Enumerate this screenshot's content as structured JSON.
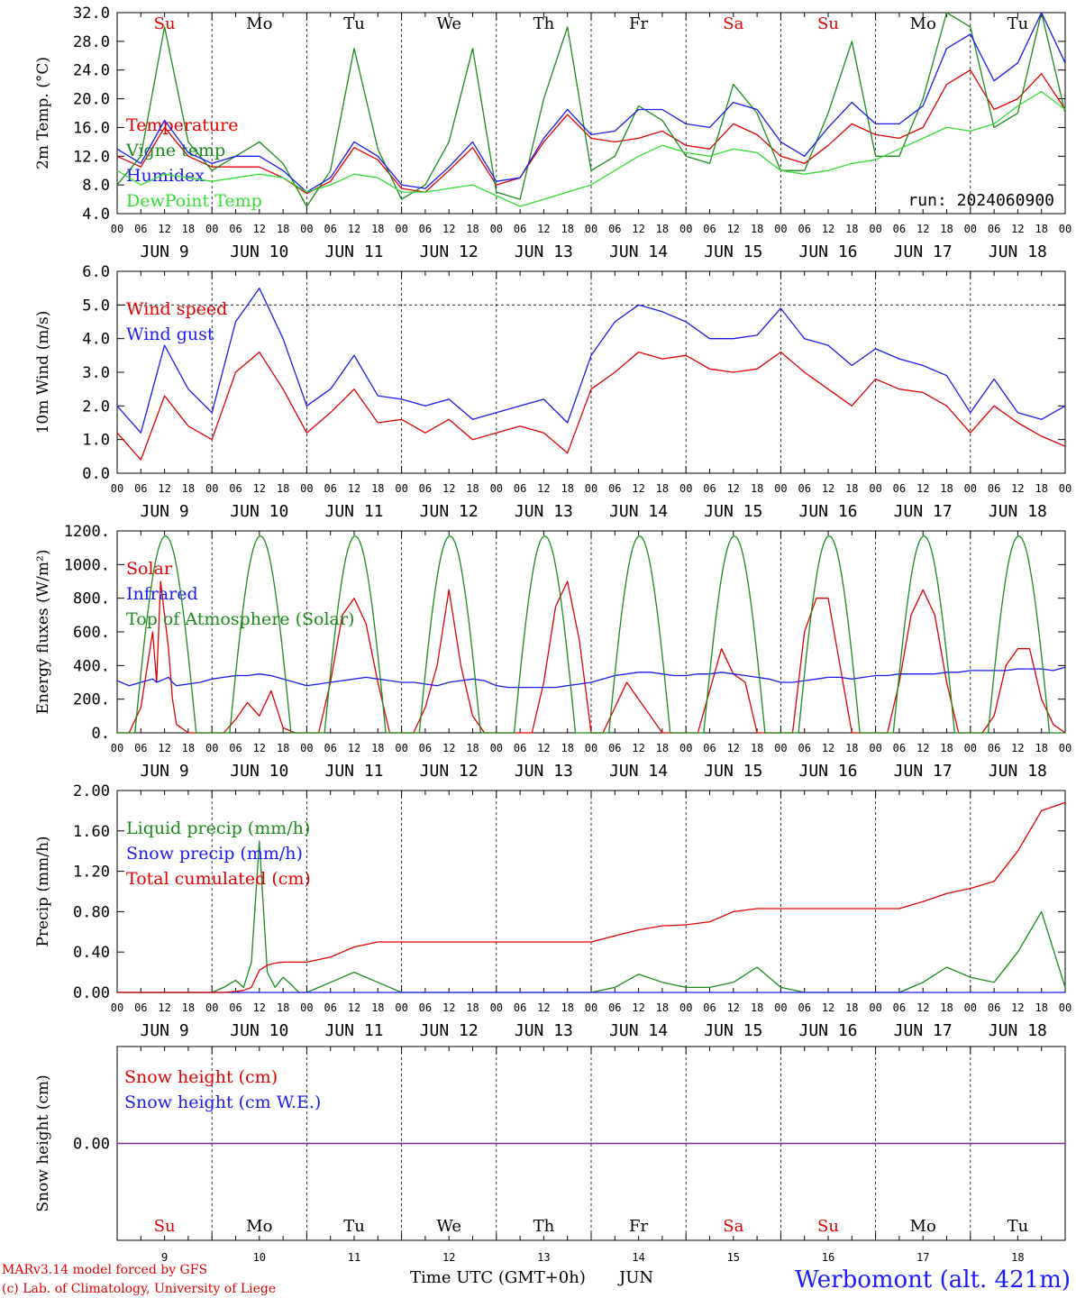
{
  "colors": {
    "red": "#e00000",
    "green": "#1a8a1a",
    "blue": "#1a1aee",
    "lightgreen": "#33dd33",
    "purple": "#7a2a8a"
  },
  "days": [
    {
      "dow": "Su",
      "weekend": true,
      "date": "JUN  9",
      "num": "9"
    },
    {
      "dow": "Mo",
      "weekend": false,
      "date": "JUN 10",
      "num": "10"
    },
    {
      "dow": "Tu",
      "weekend": false,
      "date": "JUN 11",
      "num": "11"
    },
    {
      "dow": "We",
      "weekend": false,
      "date": "JUN 12",
      "num": "12"
    },
    {
      "dow": "Th",
      "weekend": false,
      "date": "JUN 13",
      "num": "13"
    },
    {
      "dow": "Fr",
      "weekend": false,
      "date": "JUN 14",
      "num": "14"
    },
    {
      "dow": "Sa",
      "weekend": true,
      "date": "JUN 15",
      "num": "15"
    },
    {
      "dow": "Su",
      "weekend": true,
      "date": "JUN 16",
      "num": "16"
    },
    {
      "dow": "Mo",
      "weekend": false,
      "date": "JUN 17",
      "num": "17"
    },
    {
      "dow": "Tu",
      "weekend": false,
      "date": "JUN 18",
      "num": "18"
    }
  ],
  "hour_labels": [
    "00",
    "06",
    "12",
    "18"
  ],
  "hour_end": "00",
  "run_label": "run: 2024060900",
  "footer": {
    "line1": "MARv3.14 model forced by GFS",
    "line2": "(c) Lab. of Climatology, University of Liege",
    "xtitle": "Time UTC (GMT+0h)",
    "month": "JUN",
    "station": "Werbomont (alt. 421m)"
  },
  "chart_data": [
    {
      "type": "line",
      "ylabel": "2m Temp. (°C)",
      "yticks": [
        "32.0",
        "28.0",
        "24.0",
        "20.0",
        "16.0",
        "12.0",
        "8.0",
        "4.0"
      ],
      "ylim": [
        4,
        32
      ],
      "x_hours": [
        0,
        6,
        12,
        18,
        24,
        30,
        36,
        42,
        48,
        54,
        60,
        66,
        72,
        78,
        84,
        90,
        96,
        102,
        108,
        114,
        120,
        126,
        132,
        138,
        144,
        150,
        156,
        162,
        168,
        174,
        180,
        186,
        192,
        198,
        204,
        210,
        216,
        222,
        228,
        234,
        240
      ],
      "series": [
        {
          "name": "Temperature",
          "color": "red",
          "values": [
            12,
            10.5,
            16,
            12,
            10.5,
            10.5,
            10.5,
            9,
            6.8,
            8.5,
            13.2,
            11.5,
            7.5,
            7,
            10,
            13.2,
            8,
            9,
            14,
            17.8,
            14.5,
            14,
            14.5,
            15.5,
            13.5,
            13,
            16.5,
            15,
            12,
            11,
            13.5,
            16.5,
            15,
            14.5,
            16,
            22,
            24,
            18.5,
            20,
            23.5,
            18.5
          ]
        },
        {
          "name": "Vigne temp",
          "color": "green",
          "values": [
            8,
            12,
            30,
            14,
            10,
            12,
            14,
            11,
            5,
            10,
            27,
            13,
            6,
            8,
            14,
            27,
            7,
            6,
            20,
            30,
            10,
            12,
            19,
            17,
            12,
            11,
            22,
            18,
            10,
            10,
            18,
            28,
            12,
            12,
            20,
            32,
            30,
            16,
            18,
            32,
            18
          ]
        },
        {
          "name": "Humidex",
          "color": "blue",
          "values": [
            13,
            11,
            17,
            12.5,
            11,
            12,
            12,
            10,
            7,
            9,
            14,
            12,
            8,
            7.5,
            10.5,
            14,
            8.5,
            9,
            14.5,
            18.5,
            15,
            15.5,
            18.5,
            18.5,
            16.5,
            16,
            19.5,
            18.5,
            14,
            12,
            16,
            19.5,
            16.5,
            16.5,
            19,
            27,
            29,
            22.5,
            25,
            32,
            25
          ]
        },
        {
          "name": "DewPoint Temp",
          "color": "lightgreen",
          "values": [
            10,
            8,
            9.5,
            9,
            8.5,
            9,
            9.5,
            9,
            7,
            8,
            9.5,
            9,
            7,
            7,
            7.5,
            8,
            6.5,
            5,
            6,
            7,
            8,
            10,
            12,
            13.5,
            12.5,
            12,
            13,
            12.5,
            10,
            9.5,
            10,
            11,
            11.5,
            13,
            14.5,
            16,
            15.5,
            16.5,
            19,
            21,
            18.5
          ]
        }
      ]
    },
    {
      "type": "line",
      "ylabel": "10m Wind (m/s)",
      "yticks": [
        "6.0",
        "5.0",
        "4.0",
        "3.0",
        "2.0",
        "1.0",
        "0.0"
      ],
      "ylim": [
        0,
        6
      ],
      "ref_line": 5,
      "x_hours": [
        0,
        6,
        12,
        18,
        24,
        30,
        36,
        42,
        48,
        54,
        60,
        66,
        72,
        78,
        84,
        90,
        96,
        102,
        108,
        114,
        120,
        126,
        132,
        138,
        144,
        150,
        156,
        162,
        168,
        174,
        180,
        186,
        192,
        198,
        204,
        210,
        216,
        222,
        228,
        234,
        240
      ],
      "series": [
        {
          "name": "Wind speed",
          "color": "red",
          "values": [
            1.2,
            0.4,
            2.3,
            1.4,
            1.0,
            3.0,
            3.6,
            2.5,
            1.2,
            1.8,
            2.5,
            1.5,
            1.6,
            1.2,
            1.6,
            1.0,
            1.2,
            1.4,
            1.2,
            0.6,
            2.5,
            3.0,
            3.6,
            3.4,
            3.5,
            3.1,
            3.0,
            3.1,
            3.6,
            3.0,
            2.5,
            2.0,
            2.8,
            2.5,
            2.4,
            2.0,
            1.2,
            2.0,
            1.5,
            1.1,
            0.8
          ]
        },
        {
          "name": "Wind gust",
          "color": "blue",
          "values": [
            2.0,
            1.2,
            3.8,
            2.5,
            1.8,
            4.5,
            5.5,
            4.0,
            2.0,
            2.5,
            3.5,
            2.3,
            2.2,
            2.0,
            2.2,
            1.6,
            1.8,
            2.0,
            2.2,
            1.5,
            3.5,
            4.5,
            5.0,
            4.8,
            4.5,
            4.0,
            4.0,
            4.1,
            4.9,
            4.0,
            3.8,
            3.2,
            3.7,
            3.4,
            3.2,
            2.9,
            1.8,
            2.8,
            1.8,
            1.6,
            2.0
          ]
        }
      ]
    },
    {
      "type": "line",
      "ylabel": "Energy fluxes (W/m²)",
      "yticks": [
        "1200.",
        "1000.",
        "800.",
        "600.",
        "400.",
        "200.",
        "0."
      ],
      "ylim": [
        0,
        1200
      ],
      "x_hours": [
        0,
        3,
        6,
        9,
        10,
        11,
        12,
        13,
        14,
        15,
        18,
        21,
        24,
        27,
        30,
        33,
        36,
        39,
        42,
        45,
        48,
        51,
        54,
        57,
        60,
        63,
        66,
        69,
        72,
        75,
        78,
        81,
        84,
        87,
        90,
        93,
        96,
        99,
        102,
        105,
        108,
        111,
        114,
        117,
        120,
        123,
        126,
        129,
        132,
        135,
        138,
        141,
        144,
        147,
        150,
        153,
        156,
        159,
        162,
        165,
        168,
        171,
        174,
        177,
        180,
        183,
        186,
        189,
        192,
        195,
        198,
        201,
        204,
        207,
        210,
        213,
        216,
        219,
        222,
        225,
        228,
        231,
        234,
        237,
        240
      ],
      "series": [
        {
          "name": "Solar",
          "color": "red",
          "values": [
            0,
            0,
            150,
            600,
            300,
            900,
            700,
            500,
            200,
            50,
            0,
            0,
            0,
            0,
            80,
            180,
            100,
            250,
            30,
            0,
            0,
            0,
            300,
            700,
            800,
            650,
            300,
            0,
            0,
            0,
            150,
            400,
            850,
            400,
            100,
            0,
            0,
            0,
            0,
            0,
            300,
            750,
            900,
            550,
            0,
            0,
            150,
            300,
            200,
            100,
            0,
            0,
            0,
            0,
            250,
            500,
            350,
            300,
            0,
            0,
            0,
            0,
            600,
            800,
            800,
            400,
            0,
            0,
            0,
            0,
            300,
            700,
            850,
            700,
            300,
            0,
            0,
            0,
            100,
            400,
            500,
            500,
            200,
            50,
            0
          ]
        },
        {
          "name": "Infrared",
          "color": "blue",
          "values": [
            310,
            280,
            300,
            320,
            300,
            310,
            320,
            330,
            300,
            280,
            290,
            300,
            320,
            330,
            340,
            340,
            350,
            340,
            320,
            300,
            280,
            290,
            300,
            310,
            320,
            330,
            320,
            310,
            300,
            300,
            290,
            280,
            300,
            310,
            320,
            310,
            280,
            270,
            270,
            270,
            270,
            270,
            280,
            290,
            300,
            320,
            340,
            350,
            360,
            360,
            350,
            340,
            340,
            350,
            350,
            360,
            350,
            340,
            330,
            320,
            300,
            300,
            310,
            320,
            330,
            330,
            320,
            330,
            340,
            340,
            350,
            350,
            350,
            350,
            360,
            360,
            370,
            370,
            370,
            370,
            380,
            380,
            380,
            370,
            390
          ]
        },
        {
          "name": "Top of Atmosphere (Solar)",
          "color": "green",
          "sunrise_h": 4.5,
          "sunset_h": 20,
          "peak": 1170
        }
      ]
    },
    {
      "type": "line",
      "ylabel": "Precip (mm/h)",
      "yticks": [
        "2.00",
        "1.60",
        "1.20",
        "0.80",
        "0.40",
        "0.00"
      ],
      "ylim": [
        0,
        2
      ],
      "x_hours": [
        0,
        6,
        12,
        18,
        24,
        27,
        30,
        32,
        34,
        36,
        38,
        40,
        42,
        44,
        46,
        48,
        54,
        60,
        66,
        72,
        78,
        84,
        90,
        96,
        102,
        108,
        114,
        120,
        126,
        132,
        138,
        144,
        150,
        156,
        162,
        168,
        174,
        180,
        186,
        192,
        198,
        204,
        210,
        216,
        222,
        228,
        234,
        240
      ],
      "series": [
        {
          "name": "Liquid precip (mm/h)",
          "color": "green",
          "values": [
            0,
            0,
            0,
            0,
            0,
            0.05,
            0.12,
            0.05,
            0.3,
            1.5,
            0.2,
            0.05,
            0.15,
            0.08,
            0,
            0,
            0.1,
            0.2,
            0.1,
            0,
            0,
            0,
            0,
            0,
            0,
            0,
            0,
            0,
            0.05,
            0.18,
            0.1,
            0.05,
            0.05,
            0.1,
            0.25,
            0.05,
            0,
            0,
            0,
            0,
            0,
            0.1,
            0.25,
            0.15,
            0.1,
            0.4,
            0.8,
            0.05
          ]
        },
        {
          "name": "Snow precip (mm/h)",
          "color": "blue",
          "values": [
            0,
            0,
            0,
            0,
            0,
            0,
            0,
            0,
            0,
            0,
            0,
            0,
            0,
            0,
            0,
            0,
            0,
            0,
            0,
            0,
            0,
            0,
            0,
            0,
            0,
            0,
            0,
            0,
            0,
            0,
            0,
            0,
            0,
            0,
            0,
            0,
            0,
            0,
            0,
            0,
            0,
            0,
            0,
            0,
            0,
            0,
            0,
            0
          ]
        },
        {
          "name": "Total cumulated (cm)",
          "color": "red",
          "values": [
            0,
            0,
            0,
            0,
            0,
            0,
            0.01,
            0.02,
            0.05,
            0.22,
            0.27,
            0.29,
            0.3,
            0.3,
            0.3,
            0.3,
            0.35,
            0.45,
            0.5,
            0.5,
            0.5,
            0.5,
            0.5,
            0.5,
            0.5,
            0.5,
            0.5,
            0.5,
            0.56,
            0.62,
            0.66,
            0.67,
            0.7,
            0.8,
            0.83,
            0.83,
            0.83,
            0.83,
            0.83,
            0.83,
            0.83,
            0.9,
            0.98,
            1.03,
            1.1,
            1.4,
            1.8,
            1.88
          ]
        }
      ]
    },
    {
      "type": "line",
      "ylabel": "Snow height (cm)",
      "yticks": [
        "0.00"
      ],
      "ylim": [
        -1,
        1
      ],
      "x_hours": [
        0,
        240
      ],
      "series": [
        {
          "name": "Snow height (cm)",
          "color": "red",
          "values": [
            0,
            0
          ]
        },
        {
          "name": "Snow height (cm W.E.)",
          "color": "blue",
          "values": [
            0,
            0
          ]
        }
      ]
    }
  ]
}
